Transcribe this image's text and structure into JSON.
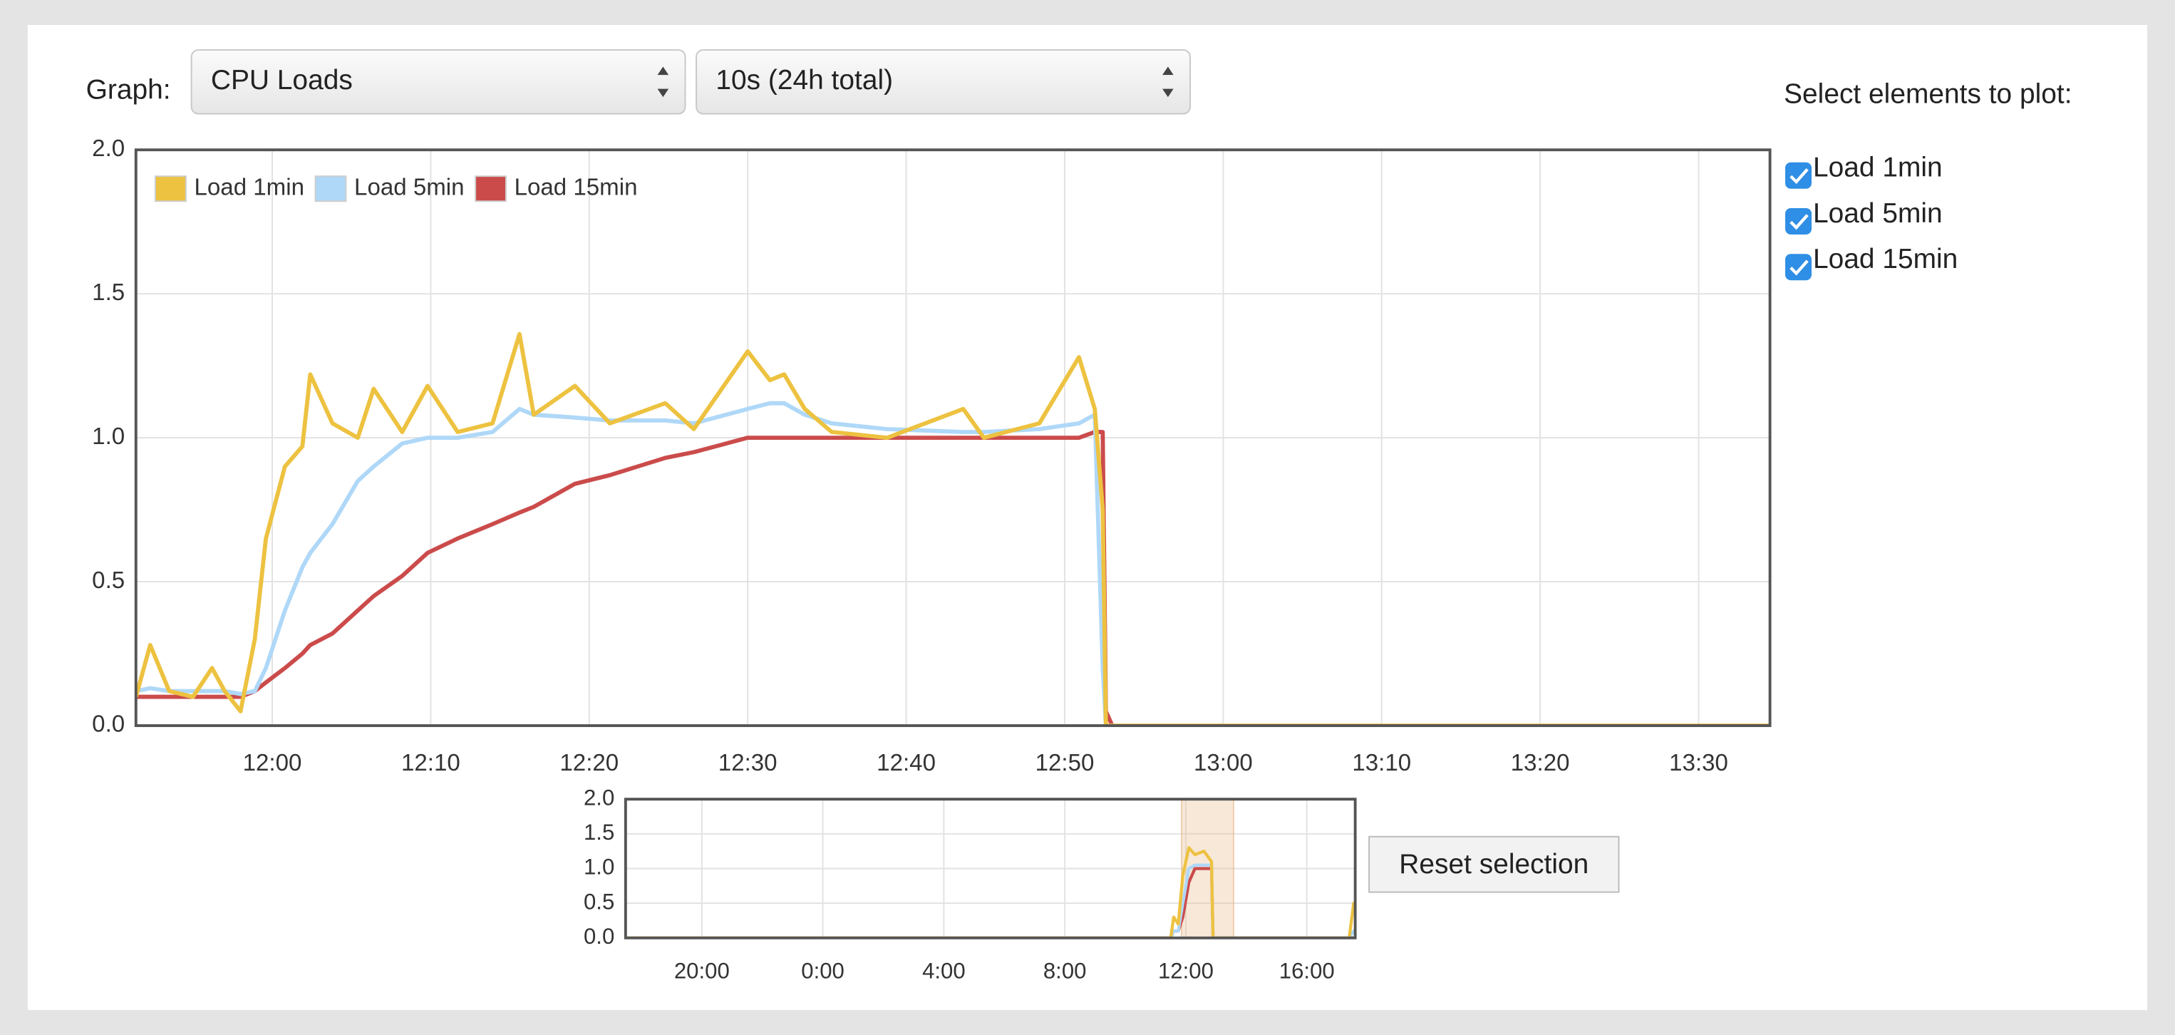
{
  "controls": {
    "graph_label": "Graph:",
    "graph_select": "CPU Loads",
    "interval_select": "10s (24h total)",
    "plot_heading": "Select elements to plot:",
    "reset_button": "Reset selection"
  },
  "chart_data": [
    {
      "type": "line",
      "grid": true,
      "legend": "upper left",
      "x": [
        711.4,
        712.3,
        713.5,
        715,
        716.2,
        717,
        718,
        718.9,
        719.6,
        720.8,
        721.9,
        722.4,
        723.8,
        725.4,
        726.4,
        728.2,
        729.8,
        731.7,
        733.9,
        735.6,
        736.5,
        739.1,
        741.3,
        744.8,
        746.6,
        750,
        751.4,
        752.3,
        753.6,
        755.3,
        758.8,
        763.6,
        764.9,
        768.4,
        770.9,
        771.9,
        772.4,
        772.6,
        773,
        814.5
      ],
      "xlim": [
        711.4,
        814.5
      ],
      "xticks": [
        {
          "value": 720,
          "label": "12:00"
        },
        {
          "value": 730,
          "label": "12:10"
        },
        {
          "value": 740,
          "label": "12:20"
        },
        {
          "value": 750,
          "label": "12:30"
        },
        {
          "value": 760,
          "label": "12:40"
        },
        {
          "value": 770,
          "label": "12:50"
        },
        {
          "value": 780,
          "label": "13:00"
        },
        {
          "value": 790,
          "label": "13:10"
        },
        {
          "value": 800,
          "label": "13:20"
        },
        {
          "value": 810,
          "label": "13:30"
        }
      ],
      "ylim": [
        0,
        2
      ],
      "yticks": [
        {
          "value": 0,
          "label": "0.0"
        },
        0.5,
        {
          "value": 1,
          "label": "1.0"
        },
        1.5,
        {
          "value": 2,
          "label": "2.0"
        }
      ],
      "series": [
        {
          "name": "Load 1min",
          "color": "#edc240",
          "values": [
            0.1,
            0.28,
            0.12,
            0.1,
            0.2,
            0.12,
            0.05,
            0.3,
            0.65,
            0.9,
            0.97,
            1.22,
            1.05,
            1.0,
            1.17,
            1.02,
            1.18,
            1.02,
            1.05,
            1.36,
            1.08,
            1.18,
            1.05,
            1.12,
            1.03,
            1.3,
            1.2,
            1.22,
            1.1,
            1.02,
            1.0,
            1.1,
            1.0,
            1.05,
            1.28,
            1.1,
            0.75,
            0,
            0,
            0
          ]
        },
        {
          "name": "Load 5min",
          "color": "#afd8f8",
          "values": [
            0.12,
            0.13,
            0.12,
            0.12,
            0.12,
            0.12,
            0.11,
            0.12,
            0.2,
            0.4,
            0.55,
            0.6,
            0.7,
            0.85,
            0.9,
            0.98,
            1.0,
            1.0,
            1.02,
            1.1,
            1.08,
            1.07,
            1.06,
            1.06,
            1.05,
            1.1,
            1.12,
            1.12,
            1.08,
            1.05,
            1.03,
            1.02,
            1.02,
            1.03,
            1.05,
            1.08,
            0.2,
            0,
            0,
            0
          ]
        },
        {
          "name": "Load 15min",
          "color": "#cb4b4b",
          "values": [
            0.1,
            0.1,
            0.1,
            0.1,
            0.1,
            0.1,
            0.1,
            0.12,
            0.15,
            0.2,
            0.25,
            0.28,
            0.32,
            0.4,
            0.45,
            0.52,
            0.6,
            0.65,
            0.7,
            0.74,
            0.76,
            0.84,
            0.87,
            0.93,
            0.95,
            1.0,
            1.0,
            1.0,
            1.0,
            1.0,
            1.0,
            1.0,
            1.0,
            1.0,
            1.0,
            1.02,
            1.02,
            0.05,
            0,
            0
          ]
        }
      ]
    },
    {
      "type": "line",
      "grid": true,
      "x": [
        17.48,
        35.5,
        35.6,
        35.75,
        35.9,
        36.1,
        36.3,
        36.6,
        36.85,
        36.9,
        41.4,
        41.55,
        41.6
      ],
      "xlim": [
        17.48,
        41.6
      ],
      "xticks": [
        {
          "value": 20,
          "label": "20:00"
        },
        {
          "value": 24,
          "label": "0:00"
        },
        {
          "value": 28,
          "label": "4:00"
        },
        {
          "value": 32,
          "label": "8:00"
        },
        {
          "value": 36,
          "label": "12:00"
        },
        {
          "value": 40,
          "label": "16:00"
        }
      ],
      "ylim": [
        0,
        2
      ],
      "yticks": [
        {
          "value": 0,
          "label": "0.0"
        },
        0.5,
        {
          "value": 1,
          "label": "1.0"
        },
        1.5,
        {
          "value": 2,
          "label": "2.0"
        }
      ],
      "selection": [
        35.86,
        37.58
      ],
      "series": [
        {
          "name": "Load 1min",
          "color": "#edc240",
          "values": [
            0,
            0,
            0.3,
            0.2,
            0.9,
            1.3,
            1.2,
            1.25,
            1.1,
            0,
            0,
            0.5,
            0.5
          ]
        },
        {
          "name": "Load 5min",
          "color": "#afd8f8",
          "values": [
            0,
            0,
            0.1,
            0.1,
            0.5,
            1.0,
            1.05,
            1.05,
            1.05,
            0,
            0,
            0.1,
            0.1
          ]
        },
        {
          "name": "Load 15min",
          "color": "#cb4b4b",
          "values": [
            0,
            0,
            0.1,
            0.1,
            0.3,
            0.8,
            1.0,
            1.0,
            1.0,
            0,
            0,
            0,
            0
          ]
        }
      ]
    }
  ]
}
